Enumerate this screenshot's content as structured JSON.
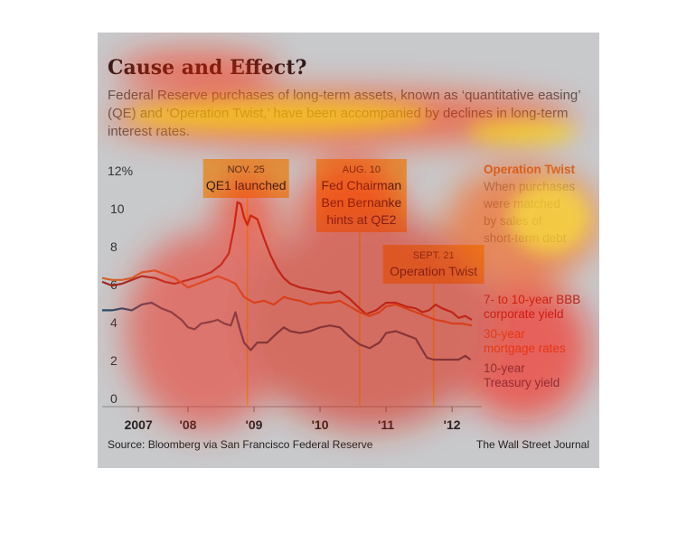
{
  "header": {
    "title": "Cause and Effect?",
    "subtitle": "Federal Reserve purchases of long-term assets, known as ‘quantitative easing’ (QE) and ‘Operation Twist,’ have been accompanied by declines in long-term interest rates."
  },
  "footer": {
    "source": "Source: Bloomberg via San Francisco Federal Reserve",
    "credit": "The Wall Street Journal"
  },
  "colors": {
    "bbb": "#9b2a22",
    "mortgage": "#d2632a",
    "treasury": "#1e4d6e",
    "event_line": "#e0b030",
    "annotation_box": "#e08f2d",
    "side_note_title": "#c8632a",
    "side_note_text": "#7a7a7a"
  },
  "chart_data": {
    "type": "line",
    "ylabel": "12%",
    "ylim": [
      0,
      12
    ],
    "yticks": [
      0,
      2,
      4,
      6,
      8,
      10
    ],
    "ytick_top_label": "12%",
    "xlim": [
      2006.7,
      2012.45
    ],
    "xticks": [
      {
        "x": 2007.25,
        "label": "2007"
      },
      {
        "x": 2008.0,
        "label": "'08"
      },
      {
        "x": 2009.0,
        "label": "'09"
      },
      {
        "x": 2010.0,
        "label": "'10"
      },
      {
        "x": 2011.0,
        "label": "'11"
      },
      {
        "x": 2012.0,
        "label": "'12"
      }
    ],
    "series": [
      {
        "name": "7- to 10-year BBB corporate yield",
        "key": "bbb",
        "points": [
          [
            2006.7,
            6.1
          ],
          [
            2006.85,
            5.9
          ],
          [
            2007.0,
            6.0
          ],
          [
            2007.15,
            6.2
          ],
          [
            2007.3,
            6.4
          ],
          [
            2007.5,
            6.3
          ],
          [
            2007.65,
            6.1
          ],
          [
            2007.8,
            6.0
          ],
          [
            2008.0,
            6.2
          ],
          [
            2008.2,
            6.4
          ],
          [
            2008.35,
            6.6
          ],
          [
            2008.5,
            7.0
          ],
          [
            2008.62,
            7.6
          ],
          [
            2008.7,
            9.0
          ],
          [
            2008.75,
            10.3
          ],
          [
            2008.8,
            10.2
          ],
          [
            2008.85,
            9.5
          ],
          [
            2008.9,
            9.1
          ],
          [
            2008.95,
            9.6
          ],
          [
            2009.05,
            9.4
          ],
          [
            2009.15,
            8.4
          ],
          [
            2009.25,
            7.5
          ],
          [
            2009.35,
            6.8
          ],
          [
            2009.45,
            6.3
          ],
          [
            2009.55,
            6.0
          ],
          [
            2009.7,
            5.8
          ],
          [
            2009.85,
            5.7
          ],
          [
            2010.0,
            5.6
          ],
          [
            2010.15,
            5.5
          ],
          [
            2010.3,
            5.6
          ],
          [
            2010.45,
            5.2
          ],
          [
            2010.6,
            4.7
          ],
          [
            2010.7,
            4.4
          ],
          [
            2010.85,
            4.6
          ],
          [
            2011.0,
            5.0
          ],
          [
            2011.15,
            5.0
          ],
          [
            2011.3,
            4.8
          ],
          [
            2011.45,
            4.7
          ],
          [
            2011.55,
            4.5
          ],
          [
            2011.65,
            4.6
          ],
          [
            2011.75,
            4.9
          ],
          [
            2011.85,
            4.7
          ],
          [
            2012.0,
            4.5
          ],
          [
            2012.1,
            4.2
          ],
          [
            2012.2,
            4.3
          ],
          [
            2012.3,
            4.1
          ]
        ]
      },
      {
        "name": "30-year mortgage rates",
        "key": "mortgage",
        "points": [
          [
            2006.7,
            6.3
          ],
          [
            2006.85,
            6.2
          ],
          [
            2007.0,
            6.2
          ],
          [
            2007.15,
            6.3
          ],
          [
            2007.3,
            6.6
          ],
          [
            2007.5,
            6.7
          ],
          [
            2007.65,
            6.5
          ],
          [
            2007.8,
            6.3
          ],
          [
            2008.0,
            5.8
          ],
          [
            2008.15,
            6.0
          ],
          [
            2008.3,
            6.2
          ],
          [
            2008.45,
            6.4
          ],
          [
            2008.6,
            6.2
          ],
          [
            2008.72,
            6.0
          ],
          [
            2008.85,
            5.3
          ],
          [
            2009.0,
            5.0
          ],
          [
            2009.15,
            5.1
          ],
          [
            2009.3,
            4.9
          ],
          [
            2009.45,
            5.3
          ],
          [
            2009.55,
            5.2
          ],
          [
            2009.7,
            5.1
          ],
          [
            2009.85,
            4.9
          ],
          [
            2010.0,
            5.0
          ],
          [
            2010.15,
            5.0
          ],
          [
            2010.3,
            5.1
          ],
          [
            2010.45,
            4.8
          ],
          [
            2010.6,
            4.5
          ],
          [
            2010.75,
            4.3
          ],
          [
            2010.9,
            4.5
          ],
          [
            2011.0,
            4.8
          ],
          [
            2011.15,
            4.9
          ],
          [
            2011.3,
            4.7
          ],
          [
            2011.45,
            4.5
          ],
          [
            2011.6,
            4.3
          ],
          [
            2011.75,
            4.1
          ],
          [
            2011.9,
            4.0
          ],
          [
            2012.0,
            3.9
          ],
          [
            2012.15,
            3.9
          ],
          [
            2012.3,
            3.8
          ]
        ]
      },
      {
        "name": "10-year Treasury yield",
        "key": "treasury",
        "points": [
          [
            2006.7,
            4.6
          ],
          [
            2006.85,
            4.6
          ],
          [
            2007.0,
            4.7
          ],
          [
            2007.15,
            4.6
          ],
          [
            2007.3,
            4.9
          ],
          [
            2007.45,
            5.0
          ],
          [
            2007.6,
            4.7
          ],
          [
            2007.75,
            4.5
          ],
          [
            2007.9,
            4.1
          ],
          [
            2008.0,
            3.7
          ],
          [
            2008.1,
            3.6
          ],
          [
            2008.2,
            3.9
          ],
          [
            2008.35,
            4.0
          ],
          [
            2008.45,
            4.1
          ],
          [
            2008.55,
            3.9
          ],
          [
            2008.65,
            3.8
          ],
          [
            2008.72,
            4.5
          ],
          [
            2008.78,
            3.7
          ],
          [
            2008.85,
            2.9
          ],
          [
            2008.95,
            2.5
          ],
          [
            2009.05,
            2.9
          ],
          [
            2009.2,
            2.9
          ],
          [
            2009.35,
            3.4
          ],
          [
            2009.45,
            3.7
          ],
          [
            2009.55,
            3.5
          ],
          [
            2009.7,
            3.4
          ],
          [
            2009.85,
            3.5
          ],
          [
            2010.0,
            3.7
          ],
          [
            2010.15,
            3.8
          ],
          [
            2010.3,
            3.7
          ],
          [
            2010.45,
            3.2
          ],
          [
            2010.6,
            2.8
          ],
          [
            2010.75,
            2.6
          ],
          [
            2010.9,
            2.9
          ],
          [
            2011.0,
            3.4
          ],
          [
            2011.15,
            3.5
          ],
          [
            2011.3,
            3.3
          ],
          [
            2011.45,
            3.1
          ],
          [
            2011.55,
            2.5
          ],
          [
            2011.62,
            2.1
          ],
          [
            2011.72,
            2.0
          ],
          [
            2011.85,
            2.0
          ],
          [
            2012.0,
            2.0
          ],
          [
            2012.1,
            2.0
          ],
          [
            2012.2,
            2.2
          ],
          [
            2012.28,
            2.0
          ]
        ]
      }
    ],
    "events": [
      {
        "x": 2008.9,
        "date": "NOV. 25",
        "label_lines": [
          "QE1 launched"
        ]
      },
      {
        "x": 2010.6,
        "date": "AUG. 10",
        "label_lines": [
          "Fed Chairman",
          "Ben Bernanke",
          "hints at QE2"
        ]
      },
      {
        "x": 2011.72,
        "date": "SEPT. 21",
        "label_lines": [
          "Operation Twist"
        ]
      }
    ],
    "legend": [
      {
        "key": "bbb",
        "lines": [
          "7- to 10-year BBB",
          "corporate yield"
        ]
      },
      {
        "key": "mortgage",
        "lines": [
          "30-year",
          "mortgage rates"
        ]
      },
      {
        "key": "treasury",
        "lines": [
          "10-year",
          "Treasury yield"
        ]
      }
    ],
    "side_note": {
      "title": "Operation Twist",
      "lines": [
        "When purchases",
        "were matched",
        "by sales of",
        "short-term debt"
      ]
    }
  }
}
